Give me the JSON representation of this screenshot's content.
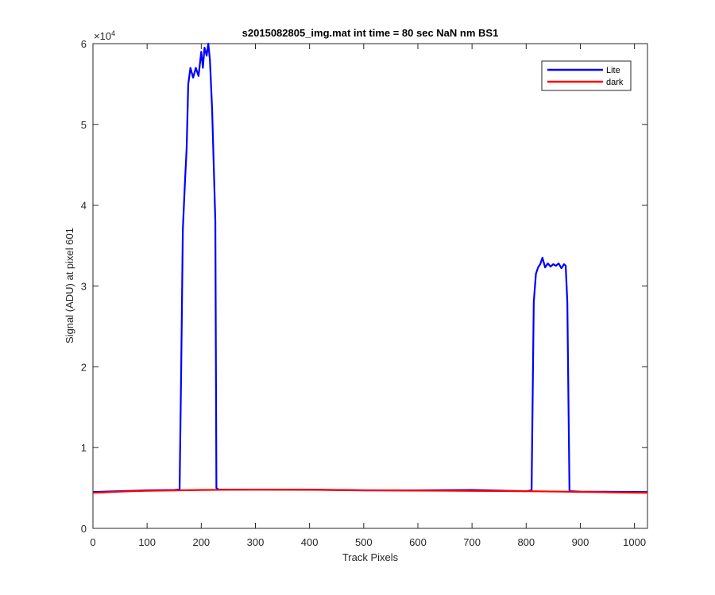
{
  "chart_data": {
    "type": "line",
    "title": "s2015082805_img.mat int time = 80 sec  NaN nm BS1",
    "xlabel": "Track Pixels",
    "ylabel": "Signal (ADU) at pixel 601",
    "xlim": [
      0,
      1024
    ],
    "ylim": [
      0,
      60000
    ],
    "xticks": [
      0,
      100,
      200,
      300,
      400,
      500,
      600,
      700,
      800,
      900,
      1000
    ],
    "yticks": [
      0,
      10000,
      20000,
      30000,
      40000,
      50000,
      60000
    ],
    "ytick_labels": [
      "0",
      "1",
      "2",
      "3",
      "4",
      "5",
      "6"
    ],
    "y_exponent_base": "×10",
    "y_exponent_power": "4",
    "grid": false,
    "legend_position": "top-right",
    "series": [
      {
        "name": "Lite",
        "color": "#0000ff",
        "x": [
          0,
          100,
          150,
          160,
          163,
          166,
          170,
          173,
          176,
          180,
          185,
          190,
          195,
          200,
          203,
          206,
          210,
          213,
          216,
          220,
          223,
          226,
          228,
          232,
          300,
          400,
          500,
          600,
          700,
          800,
          810,
          814,
          818,
          822,
          826,
          830,
          835,
          840,
          845,
          850,
          855,
          860,
          865,
          870,
          873,
          876,
          880,
          900,
          1024
        ],
        "y": [
          4500,
          4700,
          4750,
          4800,
          20000,
          37000,
          43000,
          47000,
          55000,
          57000,
          55800,
          57000,
          56000,
          59000,
          57000,
          59500,
          58500,
          60000,
          58000,
          52000,
          45000,
          38000,
          5000,
          4800,
          4800,
          4800,
          4700,
          4700,
          4750,
          4600,
          4700,
          28000,
          31500,
          32300,
          32700,
          33500,
          32300,
          32800,
          32400,
          32700,
          32500,
          32800,
          32200,
          32700,
          32500,
          28000,
          4600,
          4550,
          4500
        ]
      },
      {
        "name": "dark",
        "color": "#ff0000",
        "x": [
          0,
          50,
          100,
          150,
          200,
          250,
          300,
          350,
          400,
          450,
          500,
          550,
          600,
          650,
          700,
          750,
          800,
          850,
          900,
          950,
          1000,
          1024
        ],
        "y": [
          4400,
          4550,
          4650,
          4700,
          4750,
          4780,
          4800,
          4790,
          4770,
          4750,
          4720,
          4700,
          4680,
          4660,
          4640,
          4620,
          4600,
          4560,
          4520,
          4470,
          4420,
          4400
        ]
      }
    ]
  }
}
